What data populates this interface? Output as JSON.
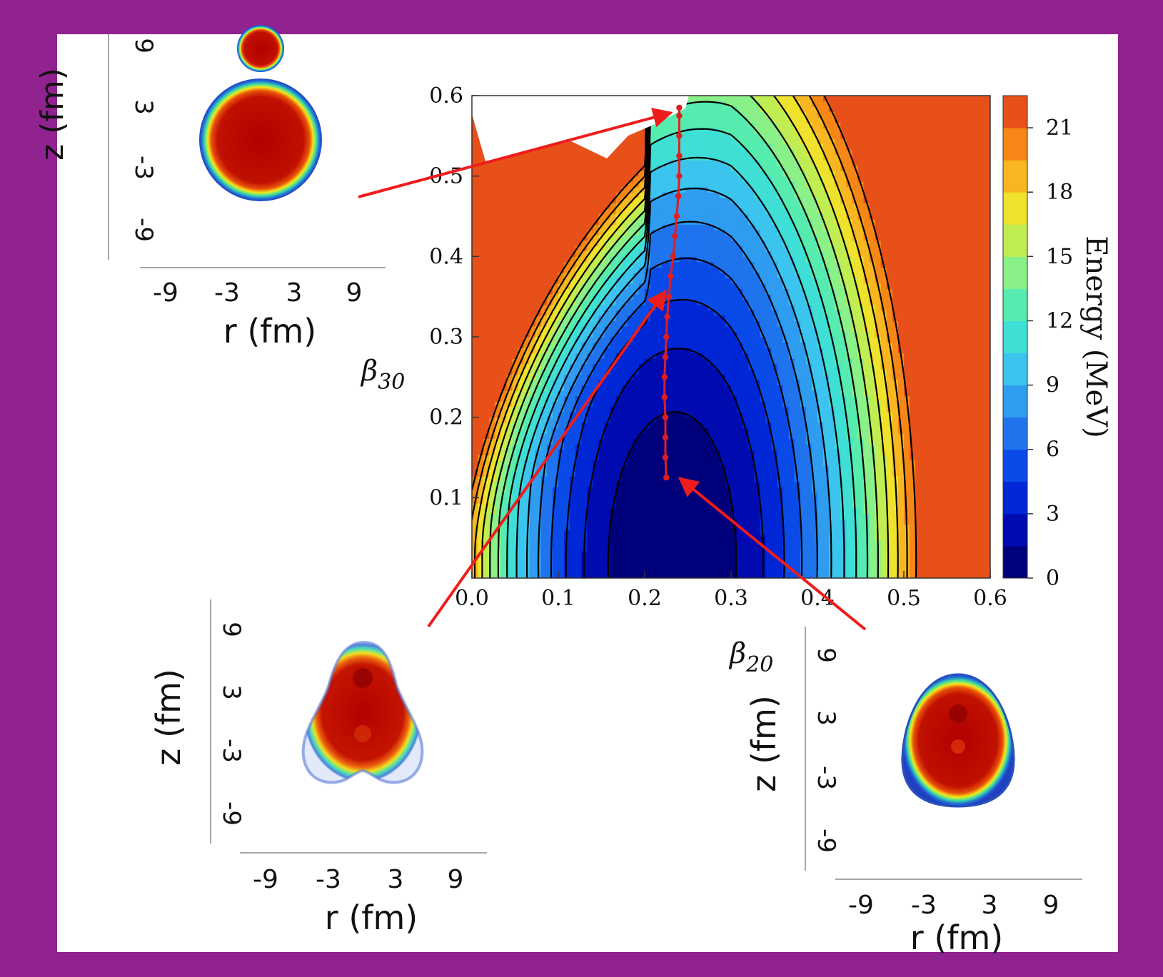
{
  "colors": {
    "frame": "#912390",
    "arrow": "#ee1c1c",
    "path": "#e11d1d"
  },
  "chart_data": {
    "type": "heatmap",
    "subtype": "contour",
    "xlabel": "β",
    "xlabel_sub": "20",
    "ylabel": "β",
    "ylabel_sub": "30",
    "xlim": [
      0.0,
      0.6
    ],
    "ylim": [
      0.0,
      0.6
    ],
    "x_ticks": [
      "0.0",
      "0.1",
      "0.2",
      "0.3",
      "0.4",
      "0.5",
      "0.6"
    ],
    "y_ticks": [
      "0.1",
      "0.2",
      "0.3",
      "0.4",
      "0.5",
      "0.6"
    ],
    "colorbar": {
      "label": "Energy (MeV)",
      "range": [
        0,
        22.5
      ],
      "ticks": [
        "0",
        "3",
        "6",
        "9",
        "12",
        "15",
        "18",
        "21"
      ],
      "levels": 15
    },
    "contour_spacing_MeV": 1.5,
    "minimum": {
      "x": 0.23,
      "y": 0.02,
      "energy": 0
    },
    "fission_path": {
      "x": [
        0.225,
        0.224,
        0.224,
        0.224,
        0.223,
        0.223,
        0.224,
        0.225,
        0.226,
        0.228,
        0.23,
        0.233,
        0.235,
        0.237,
        0.239,
        0.24,
        0.24,
        0.24,
        0.24,
        0.24
      ],
      "y": [
        0.125,
        0.15,
        0.175,
        0.2,
        0.225,
        0.25,
        0.275,
        0.3,
        0.325,
        0.35,
        0.375,
        0.4,
        0.425,
        0.45,
        0.475,
        0.5,
        0.525,
        0.55,
        0.575,
        0.585
      ]
    }
  },
  "insets": [
    {
      "id": "top-left",
      "zlabel": "z (fm)",
      "rlabel": "r (fm)",
      "r_ticks": [
        "-9",
        "-3",
        "3",
        "9"
      ],
      "z_ticks": [
        "9",
        "3",
        "-3",
        "-9"
      ],
      "shape": "scission"
    },
    {
      "id": "bottom-left",
      "zlabel": "z (fm)",
      "rlabel": "r (fm)",
      "r_ticks": [
        "-9",
        "-3",
        "3",
        "9"
      ],
      "z_ticks": [
        "9",
        "3",
        "-3",
        "-9"
      ],
      "shape": "pear"
    },
    {
      "id": "bottom-right",
      "zlabel": "z (fm)",
      "rlabel": "r (fm)",
      "r_ticks": [
        "-9",
        "-3",
        "3",
        "9"
      ],
      "z_ticks": [
        "9",
        "3",
        "-3",
        "-9"
      ],
      "shape": "egg"
    }
  ]
}
